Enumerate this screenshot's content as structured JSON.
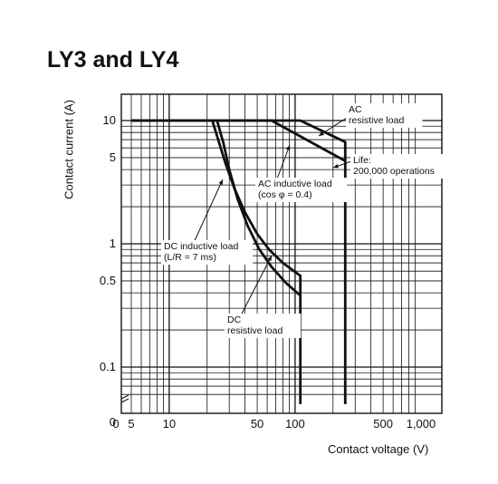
{
  "title": "LY3 and LY4",
  "chart_data": {
    "type": "line",
    "title": "LY3 and LY4",
    "xlabel": "Contact voltage (V)",
    "ylabel": "Contact current (A)",
    "x_scale": "log",
    "y_scale": "log",
    "xlim": [
      5,
      1000
    ],
    "ylim": [
      0.05,
      10
    ],
    "grid": true,
    "x_tick_labels": [
      "0",
      "5",
      "10",
      "50",
      "100",
      "500",
      "1,000"
    ],
    "x_tick_values": [
      null,
      5,
      10,
      50,
      100,
      500,
      1000
    ],
    "y_tick_labels": [
      "0",
      "0.1",
      "0.5",
      "1",
      "5",
      "10"
    ],
    "y_tick_values": [
      null,
      0.1,
      0.5,
      1,
      5,
      10
    ],
    "series": [
      {
        "name": "AC resistive load",
        "label_lines": [
          "AC",
          "resistive load"
        ],
        "x": [
          5,
          110,
          250,
          250
        ],
        "y": [
          10,
          10,
          6.7,
          0.05
        ]
      },
      {
        "name": "AC inductive load (cos φ = 0.4)",
        "label_lines": [
          "AC inductive load",
          "(cos φ = 0.4)"
        ],
        "x": [
          5,
          65,
          250
        ],
        "y": [
          10,
          10,
          4.7
        ]
      },
      {
        "name": "DC inductive load (L/R = 7 ms)",
        "label_lines": [
          "DC inductive load",
          "(L/R = 7 ms)"
        ],
        "x": [
          22,
          24,
          28,
          33,
          40,
          50,
          62,
          80,
          110,
          110
        ],
        "y": [
          10,
          7.5,
          4.5,
          2.8,
          1.8,
          1.2,
          0.9,
          0.7,
          0.55,
          0.05
        ]
      },
      {
        "name": "DC resistive load",
        "label_lines": [
          "DC",
          "resistive load"
        ],
        "x": [
          24,
          27,
          30,
          35,
          42,
          52,
          65,
          85,
          110
        ],
        "y": [
          10,
          6.5,
          4,
          2.3,
          1.4,
          0.9,
          0.65,
          0.48,
          0.38
        ]
      }
    ],
    "annotations": [
      {
        "name": "life",
        "label_lines": [
          "Life:",
          "200,000 operations"
        ]
      }
    ]
  }
}
